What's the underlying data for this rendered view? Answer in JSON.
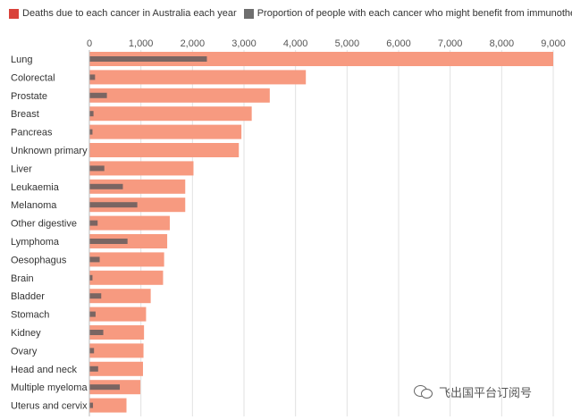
{
  "chart_data": {
    "type": "bar",
    "orientation": "horizontal",
    "title": "",
    "xlabel": "",
    "ylabel": "",
    "xlim": [
      0,
      9000
    ],
    "x_ticks": [
      "0",
      "1,000",
      "2,000",
      "3,000",
      "4,000",
      "5,000",
      "6,000",
      "7,000",
      "8,000",
      "9,000"
    ],
    "x_tick_values": [
      0,
      1000,
      2000,
      3000,
      4000,
      5000,
      6000,
      7000,
      8000,
      9000
    ],
    "grid": true,
    "legend_position": "top-left",
    "categories": [
      "Lung",
      "Colorectal",
      "Prostate",
      "Breast",
      "Pancreas",
      "Unknown primary",
      "Liver",
      "Leukaemia",
      "Melanoma",
      "Other digestive",
      "Lymphoma",
      "Oesophagus",
      "Brain",
      "Bladder",
      "Stomach",
      "Kidney",
      "Ovary",
      "Head and neck",
      "Multiple myeloma",
      "Uterus and cervix"
    ],
    "series": [
      {
        "name": "Deaths due to each cancer in Australia each year",
        "color": "#f79a80",
        "legend_color": "#d9423a",
        "values": [
          9050,
          4200,
          3500,
          3150,
          2950,
          2900,
          2020,
          1860,
          1860,
          1560,
          1510,
          1450,
          1430,
          1190,
          1100,
          1060,
          1050,
          1040,
          990,
          720
        ]
      },
      {
        "name": "Proportion of people with each cancer who might benefit from immunotherapy",
        "color": "#7a6562",
        "legend_color": "#6e6e6e",
        "values": [
          2280,
          110,
          340,
          80,
          60,
          0,
          290,
          650,
          930,
          160,
          740,
          200,
          60,
          230,
          120,
          270,
          90,
          170,
          590,
          70
        ]
      }
    ]
  },
  "watermark": {
    "text": "飞出国平台订阅号",
    "icon": "chat-bubbles-icon"
  }
}
